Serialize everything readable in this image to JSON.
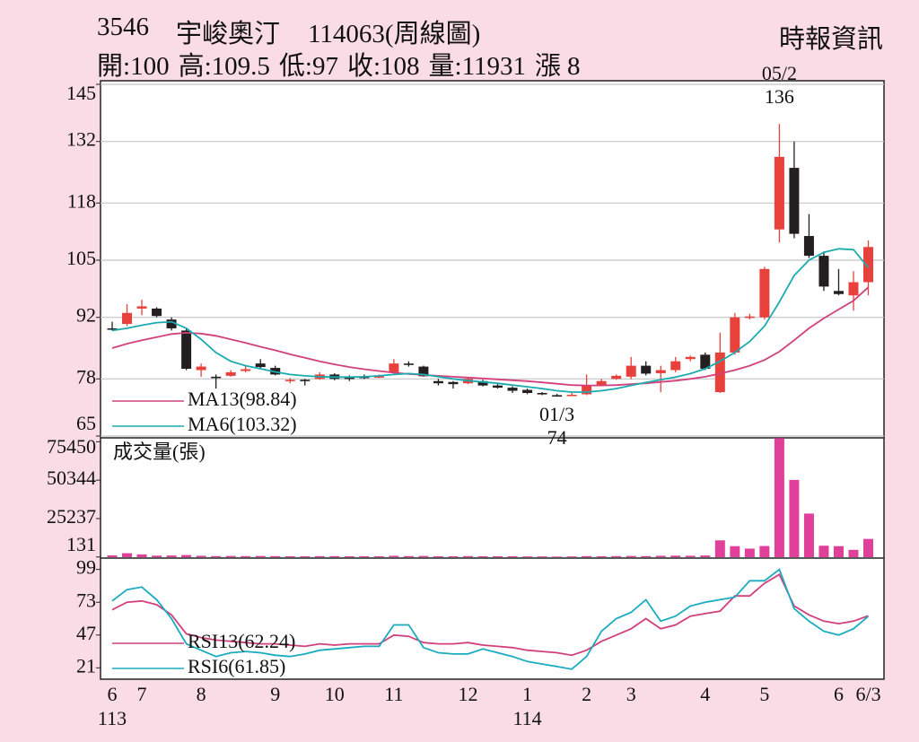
{
  "header": {
    "code": "3546",
    "name": "宇峻奧汀",
    "period": "114063(周線圖)",
    "source": "時報資訊",
    "quote": [
      {
        "label": "開:",
        "value": 100
      },
      {
        "label": "高:",
        "value": 109.5
      },
      {
        "label": "低:",
        "value": 97
      },
      {
        "label": "收:",
        "value": 108
      },
      {
        "label": "量:",
        "value": 11931
      },
      {
        "label": "漲",
        "value": 8
      }
    ]
  },
  "chart_data": [
    {
      "type": "candlestick",
      "up_color": "#e8403a",
      "down_color": "#231f20",
      "ylim": [
        65,
        145
      ],
      "yticks": [
        65,
        78,
        92,
        105,
        118,
        132,
        145
      ],
      "grid": true,
      "open": [
        89.5,
        90.5,
        94,
        94,
        91.5,
        89,
        80,
        78.5,
        78.7,
        79.8,
        81.5,
        80.5,
        77.5,
        77.8,
        78,
        79,
        78.3,
        78.5,
        78.5,
        79.5,
        81.5,
        80.8,
        77.5,
        77.3,
        77,
        77.5,
        76.5,
        76,
        75.5,
        74.8,
        74.3,
        74.3,
        74.5,
        76.5,
        78,
        78.5,
        81,
        79.3,
        80,
        82.5,
        83.5,
        75,
        84,
        92,
        92,
        112,
        126,
        110.5,
        106,
        98,
        97,
        100
      ],
      "high": [
        91,
        95,
        96,
        94.3,
        92,
        89.5,
        81.5,
        79,
        80,
        81,
        82.5,
        81,
        78.2,
        78,
        79.5,
        79.3,
        78.8,
        79,
        79,
        82.5,
        82,
        81,
        78,
        77.5,
        78.3,
        77.8,
        77,
        76.3,
        75.8,
        75,
        74.6,
        74.8,
        79,
        78,
        79,
        83,
        82,
        81,
        83,
        83.3,
        84,
        88.5,
        93,
        92.8,
        103.5,
        136,
        132,
        115.5,
        107,
        103,
        102.5,
        109.5
      ],
      "low": [
        89,
        90,
        92.5,
        92,
        89,
        80,
        78.5,
        75.8,
        78.5,
        79.5,
        80.3,
        78.8,
        77,
        76.5,
        77.8,
        77.7,
        77.5,
        78,
        78.2,
        79.2,
        80.8,
        78.5,
        76.5,
        75.8,
        76.8,
        76.3,
        75.8,
        74.8,
        74.5,
        74.3,
        74,
        74.2,
        74.3,
        76.3,
        77.8,
        78,
        78.8,
        75,
        79.5,
        82,
        80,
        74.8,
        83.5,
        91.5,
        91.5,
        109,
        110,
        105.5,
        98,
        97,
        93.5,
        97
      ],
      "close": [
        89.5,
        93,
        94.5,
        92.3,
        89.5,
        80.3,
        80.8,
        78.3,
        79.5,
        80.2,
        80.7,
        79,
        77.8,
        77.5,
        79,
        78,
        78.3,
        78.5,
        78.6,
        81.5,
        81.3,
        78.6,
        77,
        76.8,
        78,
        76.5,
        76,
        75.3,
        74.8,
        74.5,
        74.2,
        74.4,
        76.5,
        77.5,
        78.7,
        81,
        79.2,
        80,
        82,
        83,
        80.3,
        84,
        92,
        92.2,
        103,
        128.5,
        111,
        106,
        99,
        97.3,
        100,
        108
      ],
      "series": [
        {
          "name": "MA13(98.84)",
          "color": "#d2407c",
          "values": [
            85,
            86,
            86.8,
            87.5,
            88.2,
            88.5,
            88.3,
            87.8,
            87,
            86.2,
            85.3,
            84.5,
            83.6,
            82.8,
            82,
            81.3,
            80.7,
            80.2,
            79.8,
            79.4,
            79.1,
            78.9,
            78.7,
            78.5,
            78.3,
            78.1,
            77.9,
            77.7,
            77.5,
            77.2,
            76.9,
            76.6,
            76.5,
            76.5,
            76.6,
            76.8,
            77,
            77.3,
            77.6,
            78,
            78.5,
            79.2,
            80,
            81,
            82.3,
            84.2,
            86.8,
            89.5,
            91.8,
            93.8,
            95.8,
            98.84
          ]
        },
        {
          "name": "MA6(103.32)",
          "color": "#1aabb0",
          "values": [
            89,
            89.5,
            90.2,
            90.8,
            91,
            89.5,
            87,
            84,
            82,
            81,
            80.3,
            79.6,
            79,
            78.7,
            78.5,
            78.4,
            78.4,
            78.5,
            78.7,
            79,
            79.2,
            79,
            78.5,
            78,
            77.6,
            77.3,
            77,
            76.6,
            76.2,
            75.8,
            75.3,
            75,
            75,
            75.3,
            75.8,
            76.5,
            77.2,
            77.8,
            78.4,
            79.2,
            80.3,
            82,
            84,
            86.5,
            90,
            95.5,
            101.5,
            105,
            106.8,
            107.6,
            107.4,
            103.32
          ]
        }
      ],
      "annotations": [
        {
          "date": "05/2",
          "value": 136
        },
        {
          "date": "01/3",
          "value": 74
        }
      ]
    },
    {
      "type": "bar",
      "title": "成交量(張)",
      "color": "#e0409a",
      "ylim": [
        0,
        78000
      ],
      "yticks": [
        131,
        25237,
        50344,
        75450
      ],
      "values": [
        1200,
        2600,
        1800,
        1000,
        1100,
        1400,
        900,
        700,
        800,
        700,
        800,
        700,
        600,
        600,
        700,
        700,
        600,
        600,
        600,
        900,
        700,
        800,
        600,
        600,
        700,
        600,
        600,
        600,
        500,
        500,
        400,
        500,
        700,
        600,
        700,
        800,
        700,
        900,
        1000,
        900,
        1100,
        11000,
        7200,
        5600,
        7300,
        77800,
        50500,
        28500,
        7500,
        7200,
        4800,
        11931
      ]
    },
    {
      "type": "line",
      "ylim": [
        12,
        108
      ],
      "yticks": [
        21,
        47,
        73,
        99
      ],
      "categories": [
        "6",
        null,
        "7",
        null,
        null,
        null,
        "8",
        null,
        null,
        null,
        null,
        "9",
        null,
        null,
        null,
        "10",
        null,
        null,
        null,
        "11",
        null,
        null,
        null,
        null,
        "12",
        null,
        null,
        null,
        "1",
        null,
        null,
        null,
        "2",
        null,
        null,
        "3",
        null,
        null,
        null,
        null,
        "4",
        null,
        null,
        null,
        "5",
        null,
        null,
        null,
        null,
        "6",
        null,
        "6/3"
      ],
      "sublabels": [
        "113",
        null,
        null,
        null,
        null,
        null,
        null,
        null,
        null,
        null,
        null,
        null,
        null,
        null,
        null,
        null,
        null,
        null,
        null,
        null,
        null,
        null,
        null,
        null,
        null,
        null,
        null,
        null,
        "114",
        null,
        null,
        null,
        null,
        null,
        null,
        null,
        null,
        null,
        null,
        null,
        null,
        null,
        null,
        null,
        null,
        null,
        null,
        null,
        null,
        null,
        null,
        null
      ],
      "series": [
        {
          "name": "RSI13(62.24)",
          "color": "#d2407c",
          "values": [
            67,
            73,
            74,
            71,
            63,
            48,
            45,
            43,
            42,
            41,
            40,
            40,
            39,
            38,
            40,
            39,
            40,
            40,
            40,
            47,
            46,
            41,
            40,
            40,
            41,
            39,
            38,
            37,
            35,
            34,
            33,
            31,
            35,
            42,
            47,
            52,
            60,
            52,
            55,
            62,
            64,
            66,
            78,
            78,
            88,
            95,
            70,
            63,
            58,
            56,
            58,
            62.24
          ]
        },
        {
          "name": "RSI6(61.85)",
          "color": "#1aabc0",
          "values": [
            74,
            83,
            85,
            75,
            60,
            40,
            35,
            30,
            33,
            34,
            33,
            31,
            30,
            32,
            35,
            36,
            37,
            38,
            38,
            55,
            55,
            37,
            33,
            32,
            32,
            36,
            33,
            30,
            26,
            24,
            22,
            20,
            30,
            50,
            60,
            65,
            75,
            58,
            62,
            70,
            73,
            75,
            77,
            90,
            90,
            99,
            68,
            58,
            50,
            47,
            52,
            61.85
          ]
        }
      ]
    }
  ]
}
